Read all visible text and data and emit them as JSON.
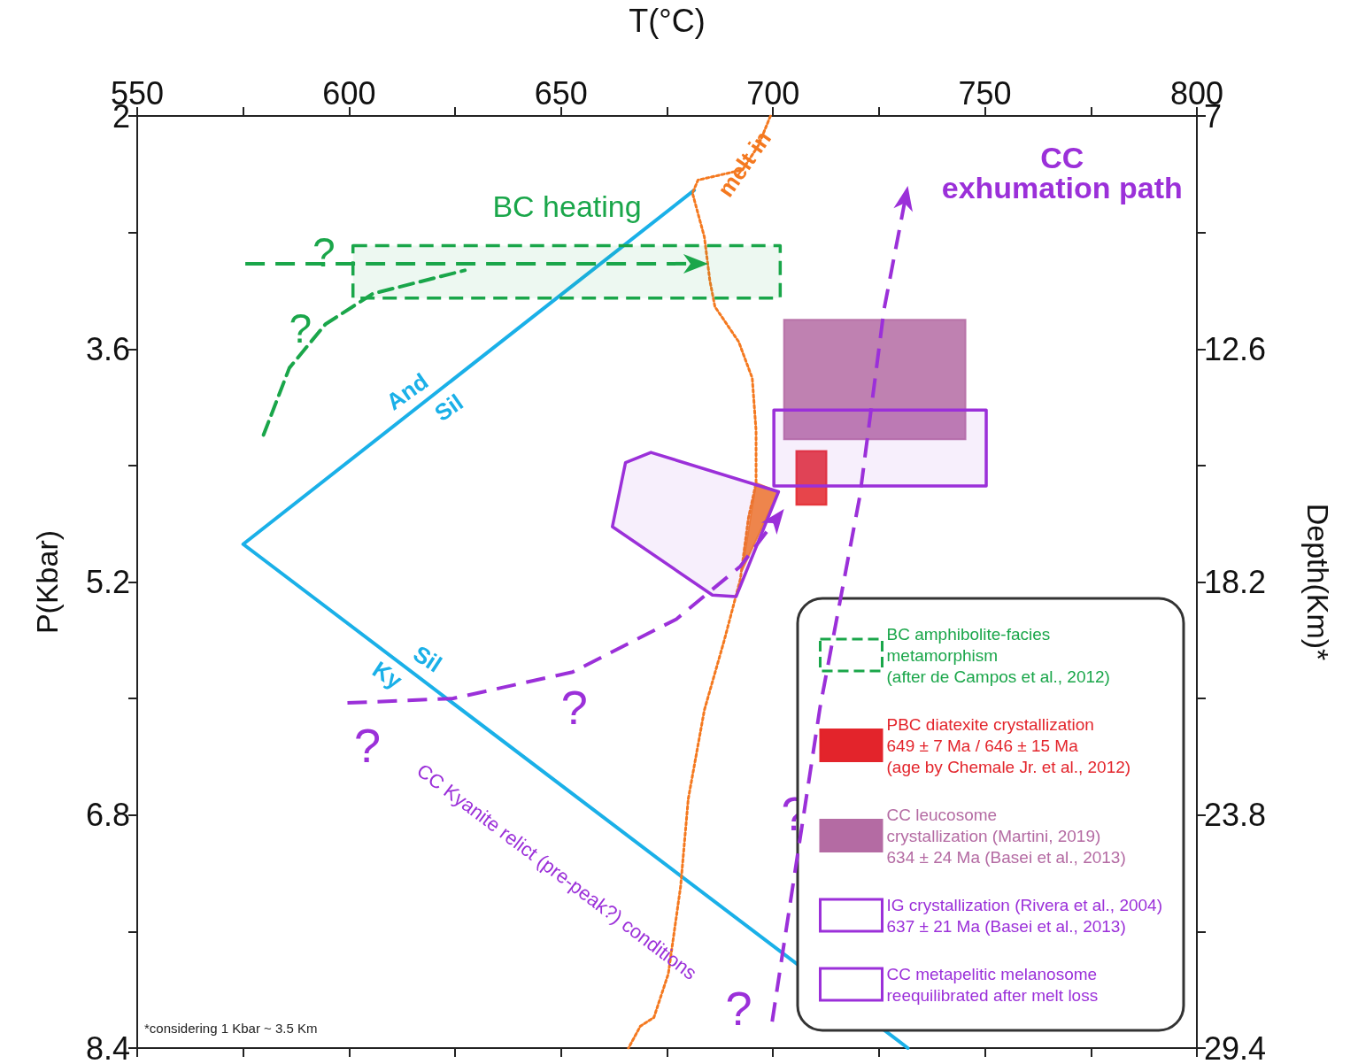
{
  "chart_data": {
    "type": "line",
    "xlabel": "T(°C)",
    "ylabel": "P(Kbar)",
    "y2label": "Depth(Km)*",
    "xlim": [
      550,
      800
    ],
    "xticks": [
      550,
      {
        "value": 575,
        "label": null
      },
      600,
      {
        "value": 625,
        "label": null
      },
      650,
      {
        "value": 675,
        "label": null
      },
      700,
      {
        "value": 725,
        "label": null
      },
      750,
      {
        "value": 775,
        "label": null
      },
      800
    ],
    "ylim": [
      8.4,
      2
    ],
    "yticks": [
      2,
      {
        "value": 2.8,
        "label": null
      },
      3.6,
      {
        "value": 4.4,
        "label": null
      },
      5.2,
      {
        "value": 6.0,
        "label": null
      },
      6.8,
      {
        "value": 7.6,
        "label": null
      },
      8.4
    ],
    "y2lim": [
      29.4,
      7
    ],
    "y2ticks": [
      7,
      {
        "value": 9.8,
        "label": null
      },
      12.6,
      {
        "value": 15.4,
        "label": null
      },
      18.2,
      {
        "value": 21,
        "label": null
      },
      23.8,
      {
        "value": 26.6,
        "label": null
      },
      29.4
    ],
    "marker": "none",
    "legend": "bottom right",
    "series": [
      {
        "color": "#1ab0e8",
        "line_style": "solid",
        "x": [
          681.4,
          575,
          731.8
        ],
        "values": [
          2.51,
          4.94,
          8.4
        ]
      },
      {
        "color": "#f47920",
        "line_style": "dotted",
        "x": [
          699.4,
          696.6,
          692.8,
          682.3,
          681.0,
          683.8,
          685.1,
          686.3,
          691.9,
          695.1,
          696.0,
          696.0,
          694.2,
          692.3,
          688.5,
          683.8,
          680.0,
          678.2,
          675.3,
          671.9,
          668.7,
          665.9
        ],
        "values": [
          2,
          2.2,
          2.37,
          2.44,
          2.53,
          2.83,
          3.13,
          3.31,
          3.55,
          3.8,
          4.16,
          4.52,
          4.76,
          5.18,
          5.6,
          6.08,
          6.69,
          7.29,
          7.89,
          8.19,
          8.25,
          8.4
        ]
      },
      {
        "color": "#1aa64a",
        "line_style": "dashed",
        "x": [
          579.8,
          585.9,
          594.4,
          605.6,
          627.3
        ],
        "values": [
          4.19,
          3.73,
          3.43,
          3.22,
          3.06
        ]
      },
      {
        "type": "area",
        "name": "BC amphibolite-facies\nmetamorphism\n(after de Campos et al., 2012)",
        "color": "#1aa64a",
        "line_style": "dashed",
        "x": [
          600.9,
          701.7,
          701.7,
          600.9
        ],
        "values": [
          2.89,
          2.89,
          3.25,
          3.25
        ]
      },
      {
        "type": "area",
        "name": "PBC diatexite crystallization\n649 ± 7 Ma / 646 ± 15 Ma\n(age by Chemale Jr. et al., 2012)",
        "color": "#e3242b",
        "x": [
          705.5,
          712.6,
          712.6,
          705.5
        ],
        "values": [
          4.3,
          4.3,
          4.67,
          4.67
        ]
      },
      {
        "type": "area",
        "name": "CC leucosome\ncrystallization (Martini, 2019)\n634 ± 24 Ma (Basei et al., 2013)",
        "color": "#b46ba3",
        "x": [
          702.6,
          745.4,
          745.4,
          702.6
        ],
        "values": [
          3.4,
          3.4,
          4.22,
          4.22
        ]
      },
      {
        "type": "area",
        "name": "IG crystallization (Rivera et al., 2004)\n637 ± 21 Ma (Basei et al., 2013)",
        "color": "#9b30d9",
        "line_style": "solid",
        "x": [
          700.2,
          750.3,
          750.3,
          700.2
        ],
        "values": [
          4.02,
          4.02,
          4.54,
          4.54
        ]
      },
      {
        "type": "area",
        "name": "CC metapelitic melanosome\nreequilibrated after melt loss",
        "color": "#9b30d9",
        "line_style": "solid",
        "x": [
          665.2,
          671.2,
          701.3,
          691.3,
          685.7,
          662.1
        ],
        "values": [
          4.38,
          4.31,
          4.58,
          5.3,
          5.29,
          4.82
        ]
      },
      {
        "type": "area",
        "color": "#f47920",
        "x": [
          696.0,
          701.3,
          692.7
        ],
        "values": [
          4.52,
          4.58,
          5.12
        ]
      }
    ],
    "annotations": [
      "BC heating",
      "?",
      "?",
      "melt in",
      "And",
      "Sil",
      "Sil",
      "Ky",
      "?",
      "?",
      "?",
      "?",
      "CC Kyanite relict (pre-peak?) conditions",
      "CC\nexhumation path",
      "*considering 1 Kbar ~ 3.5 Km"
    ]
  }
}
